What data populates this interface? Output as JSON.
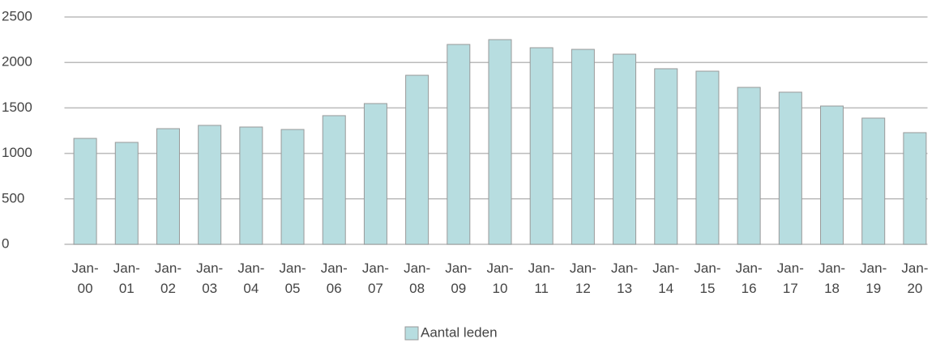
{
  "chart_data": {
    "type": "bar",
    "categories": [
      "Jan-00",
      "Jan-01",
      "Jan-02",
      "Jan-03",
      "Jan-04",
      "Jan-05",
      "Jan-06",
      "Jan-07",
      "Jan-08",
      "Jan-09",
      "Jan-10",
      "Jan-11",
      "Jan-12",
      "Jan-13",
      "Jan-14",
      "Jan-15",
      "Jan-16",
      "Jan-17",
      "Jan-18",
      "Jan-19",
      "Jan-20"
    ],
    "series": [
      {
        "name": "Aantal leden",
        "color": "#b7dde0",
        "values": [
          1165,
          1121,
          1272,
          1308,
          1290,
          1263,
          1415,
          1548,
          1859,
          2198,
          2251,
          2162,
          2144,
          2091,
          1931,
          1904,
          1726,
          1673,
          1521,
          1388,
          1228
        ]
      }
    ],
    "ylim": [
      0,
      2500
    ],
    "yticks": [
      0,
      500,
      1000,
      1500,
      2000,
      2500
    ],
    "grid": true,
    "legend": "bottom"
  }
}
